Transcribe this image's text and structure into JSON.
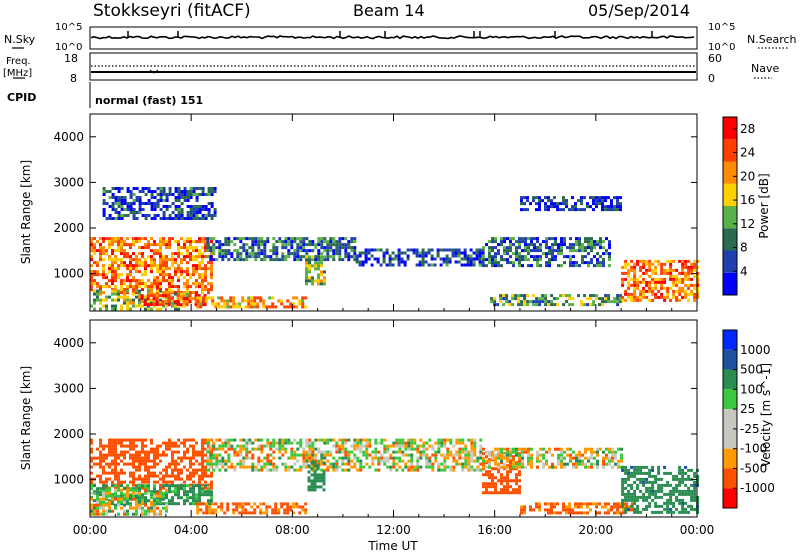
{
  "header": {
    "title": "Stokkseyri (fitACF)",
    "beam": "Beam 14",
    "date": "05/Sep/2014"
  },
  "top_panels": {
    "nsky_label": "N.Sky",
    "nsky_ticks": [
      "10^5",
      "10^0"
    ],
    "nsearch_label": "N.Search",
    "nsearch_ticks": [
      "10^5",
      "10^0"
    ],
    "freq_label": "Freq.",
    "freq_unit": "[MHz]",
    "freq_ticks": [
      "18",
      "8"
    ],
    "nave_label": "Nave",
    "nave_ticks": [
      "60",
      "0"
    ],
    "cpid_label": "CPID",
    "cpid_value": "normal (fast) 151"
  },
  "colors": {
    "power": [
      "#0000ff",
      "#2040b0",
      "#2a6a50",
      "#5ab04a",
      "#ffd000",
      "#ff8c00",
      "#ff4000",
      "#ff0000"
    ],
    "velocity": [
      "#ff0000",
      "#ff5000",
      "#ff9a00",
      "#c8c8c0",
      "#c8c8c0",
      "#3cc83c",
      "#2a8c50",
      "#1e50a0",
      "#0028ff"
    ]
  },
  "chart_data": [
    {
      "type": "heatmap",
      "title": "",
      "xlabel": "",
      "ylabel": "Slant Range [km]",
      "y_ticks": [
        "1000",
        "2000",
        "3000",
        "4000"
      ],
      "ylim": [
        180,
        4500
      ],
      "x_ticks": [
        "00:00",
        "04:00",
        "08:00",
        "12:00",
        "16:00",
        "20:00",
        "00:00"
      ],
      "xlim_hours": [
        0,
        24
      ],
      "colorbar": {
        "label": "Power [dB]",
        "ticks": [
          "4",
          "8",
          "12",
          "16",
          "20",
          "24",
          "28"
        ],
        "range": [
          0,
          30
        ]
      },
      "grid": false,
      "regions": [
        {
          "t": [
            0.0,
            4.8
          ],
          "r": [
            600,
            1800
          ],
          "value": 22
        },
        {
          "t": [
            0.0,
            3.8
          ],
          "r": [
            250,
            650
          ],
          "value": 14
        },
        {
          "t": [
            2.0,
            4.6
          ],
          "r": [
            300,
            550
          ],
          "value": 26
        },
        {
          "t": [
            4.2,
            8.5
          ],
          "r": [
            300,
            500
          ],
          "value": 20
        },
        {
          "t": [
            4.6,
            10.5
          ],
          "r": [
            1300,
            1800
          ],
          "value": 8
        },
        {
          "t": [
            8.5,
            9.3
          ],
          "r": [
            800,
            1400
          ],
          "value": 14
        },
        {
          "t": [
            10.5,
            15.5
          ],
          "r": [
            1200,
            1550
          ],
          "value": 6
        },
        {
          "t": [
            15.5,
            20.5
          ],
          "r": [
            1200,
            1800
          ],
          "value": 8
        },
        {
          "t": [
            15.7,
            21.0
          ],
          "r": [
            350,
            550
          ],
          "value": 12
        },
        {
          "t": [
            21.0,
            24.0
          ],
          "r": [
            400,
            1300
          ],
          "value": 22
        },
        {
          "t": [
            17.0,
            21.0
          ],
          "r": [
            2400,
            2700
          ],
          "value": 4
        },
        {
          "t": [
            0.5,
            5.0
          ],
          "r": [
            2200,
            2900
          ],
          "value": 6
        }
      ]
    },
    {
      "type": "heatmap",
      "title": "",
      "xlabel": "Time UT",
      "ylabel": "Slant Range [km]",
      "y_ticks": [
        "1000",
        "2000",
        "3000",
        "4000"
      ],
      "ylim": [
        180,
        4500
      ],
      "x_ticks": [
        "00:00",
        "04:00",
        "08:00",
        "12:00",
        "16:00",
        "20:00",
        "00:00"
      ],
      "xlim_hours": [
        0,
        24
      ],
      "colorbar": {
        "label": "Velocity [m s^-1]",
        "ticks": [
          "1000",
          "500",
          "100",
          "25",
          "-25",
          "-100",
          "-500",
          "-1000"
        ],
        "range": [
          -1000,
          1000
        ]
      },
      "grid": false,
      "regions": [
        {
          "t": [
            0.0,
            4.8
          ],
          "r": [
            800,
            1900
          ],
          "value": -300
        },
        {
          "t": [
            0.0,
            4.8
          ],
          "r": [
            500,
            900
          ],
          "value": 150
        },
        {
          "t": [
            0.0,
            3.0
          ],
          "r": [
            250,
            800
          ],
          "value": 0
        },
        {
          "t": [
            4.2,
            8.5
          ],
          "r": [
            300,
            500
          ],
          "value": -150
        },
        {
          "t": [
            4.6,
            15.5
          ],
          "r": [
            1200,
            1900
          ],
          "value": 0
        },
        {
          "t": [
            8.6,
            9.3
          ],
          "r": [
            800,
            1400
          ],
          "value": 300
        },
        {
          "t": [
            15.5,
            17.0
          ],
          "r": [
            700,
            1600
          ],
          "value": -300
        },
        {
          "t": [
            17.0,
            21.5
          ],
          "r": [
            300,
            500
          ],
          "value": -150
        },
        {
          "t": [
            15.5,
            21.0
          ],
          "r": [
            1250,
            1700
          ],
          "value": 0
        },
        {
          "t": [
            21.0,
            24.0
          ],
          "r": [
            300,
            1300
          ],
          "value": 400
        }
      ]
    }
  ]
}
